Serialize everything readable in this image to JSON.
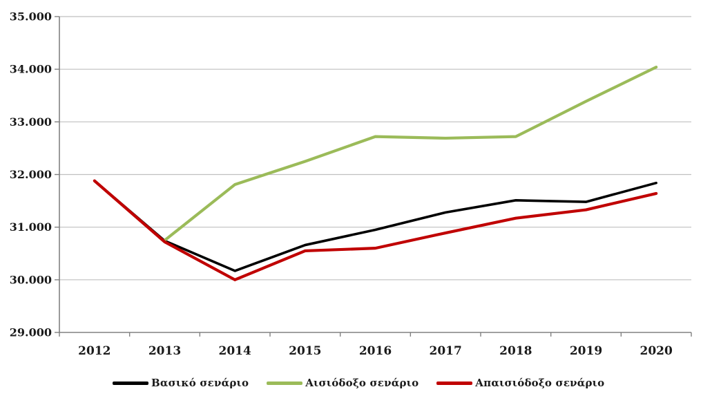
{
  "chart_data": {
    "type": "line",
    "title": "",
    "xlabel": "",
    "ylabel": "",
    "categories": [
      "2012",
      "2013",
      "2014",
      "2015",
      "2016",
      "2017",
      "2018",
      "2019",
      "2020"
    ],
    "series": [
      {
        "name": "Βασικό σενάριο",
        "color": "#000000",
        "values": [
          31880,
          30740,
          30170,
          30660,
          30950,
          31280,
          31510,
          31480,
          31840
        ]
      },
      {
        "name": "Αισιόδοξο σενάριο",
        "color": "#9BBB59",
        "values": [
          null,
          30750,
          31810,
          32250,
          32720,
          32690,
          32720,
          33390,
          34040
        ]
      },
      {
        "name": "Απαισιόδοξο σενάριο",
        "color": "#C00000",
        "values": [
          31880,
          30720,
          30000,
          30550,
          30600,
          30890,
          31170,
          31330,
          31640
        ]
      }
    ],
    "ylim": [
      29000,
      35000
    ],
    "ytick_step": 1000,
    "ytick_labels": [
      "35.000",
      "34.000",
      "33.000",
      "32.000",
      "31.000",
      "30.000",
      "29.000"
    ],
    "grid": "horizontal",
    "legend_position": "bottom",
    "colors": {
      "grid_line": "#BFBFBF",
      "axis_line": "#808080",
      "tick_text": "#1A1A1A",
      "background": "#FFFFFF"
    }
  }
}
